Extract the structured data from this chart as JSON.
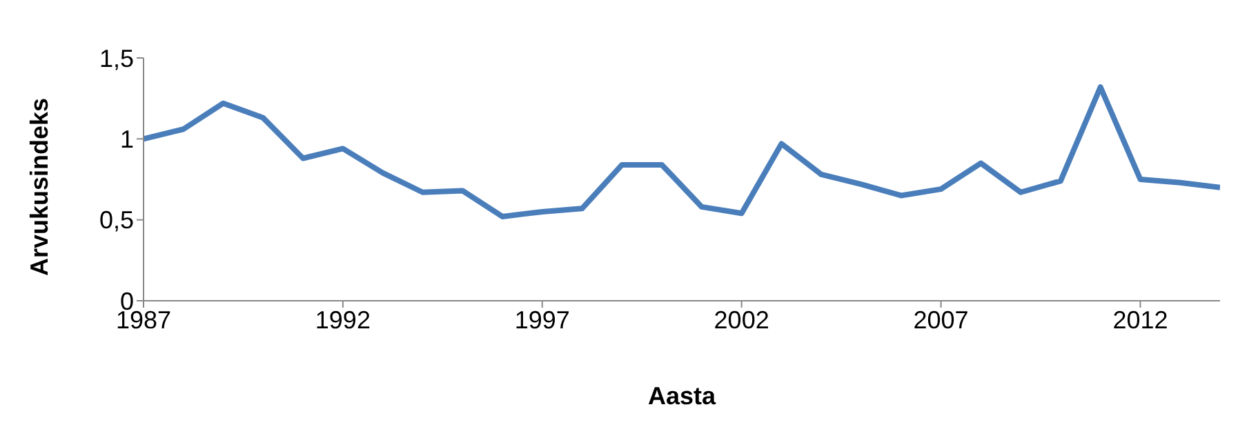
{
  "chart_data": {
    "type": "line",
    "xlabel": "Aasta",
    "ylabel": "Arvukusindeks",
    "x": [
      1987,
      1988,
      1989,
      1990,
      1991,
      1992,
      1993,
      1994,
      1995,
      1996,
      1997,
      1998,
      1999,
      2000,
      2001,
      2002,
      2003,
      2004,
      2005,
      2006,
      2007,
      2008,
      2009,
      2010,
      2011,
      2012,
      2013,
      2014
    ],
    "series": [
      {
        "color": "#4a7ebb",
        "values": [
          1.0,
          1.06,
          1.22,
          1.13,
          0.88,
          0.94,
          0.79,
          0.67,
          0.68,
          0.52,
          0.55,
          0.57,
          0.84,
          0.84,
          0.58,
          0.54,
          0.97,
          0.78,
          0.72,
          0.65,
          0.69,
          0.85,
          0.67,
          0.74,
          1.32,
          0.75,
          0.73,
          0.7
        ]
      }
    ],
    "xlim": [
      1987,
      2014
    ],
    "xticks": [
      1987,
      1992,
      1997,
      2002,
      2007,
      2012
    ],
    "ylim": [
      0,
      1.5
    ],
    "yticks": [
      {
        "value": 0,
        "label": "0"
      },
      {
        "value": 0.5,
        "label": "0,5"
      },
      {
        "value": 1,
        "label": "1"
      },
      {
        "value": 1.5,
        "label": "1,5"
      }
    ],
    "grid": false,
    "legend": false,
    "marker": "none",
    "line_style": "solid"
  }
}
